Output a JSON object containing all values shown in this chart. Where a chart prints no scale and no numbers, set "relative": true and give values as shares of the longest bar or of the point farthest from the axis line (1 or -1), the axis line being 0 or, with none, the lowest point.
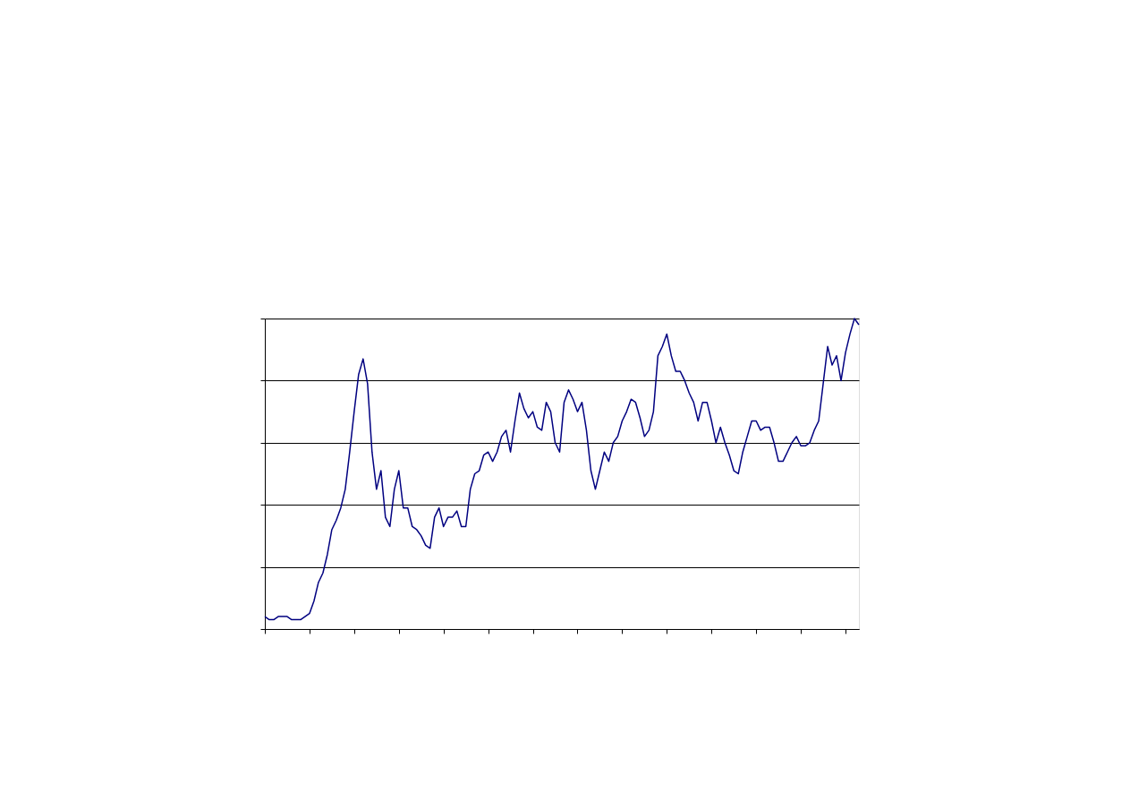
{
  "chart_data": {
    "type": "line",
    "relative": true,
    "grid": "y",
    "tick_labels": false,
    "legend": false,
    "marker": "none",
    "line_style": "solid",
    "categories": [
      null,
      null,
      null,
      null,
      null,
      null,
      null,
      null,
      null,
      null,
      null,
      null,
      null,
      null,
      null,
      null,
      null,
      null,
      null,
      null,
      null,
      null,
      null,
      null,
      null,
      null,
      null,
      null,
      null,
      null,
      null,
      null,
      null,
      null,
      null,
      null,
      null,
      null,
      null,
      null,
      null,
      null,
      null,
      null,
      null,
      null,
      null,
      null,
      null,
      null,
      null,
      null,
      null,
      null,
      null,
      null,
      null,
      null,
      null,
      null,
      null,
      null,
      null,
      null,
      null,
      null,
      null,
      null,
      null,
      null,
      null,
      null,
      null,
      null,
      null,
      null,
      null,
      null,
      null,
      null,
      null,
      null,
      null,
      null,
      null,
      null,
      null,
      null,
      null,
      null,
      null,
      null,
      null,
      null,
      null,
      null,
      null,
      null,
      null,
      null,
      null,
      null,
      null,
      null,
      null,
      null,
      null,
      null,
      null,
      null,
      null,
      null,
      null,
      null,
      null,
      null,
      null,
      null,
      null,
      null,
      null,
      null,
      null,
      null,
      null,
      null,
      null,
      null,
      null,
      null,
      null,
      null,
      null,
      null
    ],
    "series": [
      {
        "color": "#000080",
        "values": [
          0.04,
          0.03,
          0.03,
          0.04,
          0.04,
          0.04,
          0.03,
          0.03,
          0.03,
          0.04,
          0.05,
          0.09,
          0.15,
          0.18,
          0.24,
          0.32,
          0.35,
          0.39,
          0.45,
          0.57,
          0.7,
          0.82,
          0.87,
          0.79,
          0.57,
          0.45,
          0.51,
          0.36,
          0.33,
          0.45,
          0.51,
          0.39,
          0.39,
          0.33,
          0.32,
          0.3,
          0.27,
          0.26,
          0.36,
          0.39,
          0.33,
          0.36,
          0.36,
          0.38,
          0.33,
          0.33,
          0.45,
          0.5,
          0.51,
          0.56,
          0.57,
          0.54,
          0.57,
          0.62,
          0.64,
          0.57,
          0.67,
          0.76,
          0.71,
          0.68,
          0.7,
          0.65,
          0.64,
          0.73,
          0.7,
          0.6,
          0.57,
          0.73,
          0.77,
          0.74,
          0.7,
          0.73,
          0.64,
          0.51,
          0.45,
          0.51,
          0.57,
          0.54,
          0.6,
          0.62,
          0.67,
          0.7,
          0.74,
          0.73,
          0.68,
          0.62,
          0.64,
          0.7,
          0.88,
          0.91,
          0.95,
          0.88,
          0.83,
          0.83,
          0.8,
          0.76,
          0.73,
          0.67,
          0.73,
          0.73,
          0.67,
          0.6,
          0.65,
          0.6,
          0.56,
          0.51,
          0.5,
          0.57,
          0.62,
          0.67,
          0.67,
          0.64,
          0.65,
          0.65,
          0.6,
          0.54,
          0.54,
          0.57,
          0.6,
          0.62,
          0.59,
          0.59,
          0.6,
          0.64,
          0.67,
          0.79,
          0.91,
          0.85,
          0.88,
          0.8,
          0.89,
          0.95,
          1,
          0.98
        ]
      }
    ]
  }
}
